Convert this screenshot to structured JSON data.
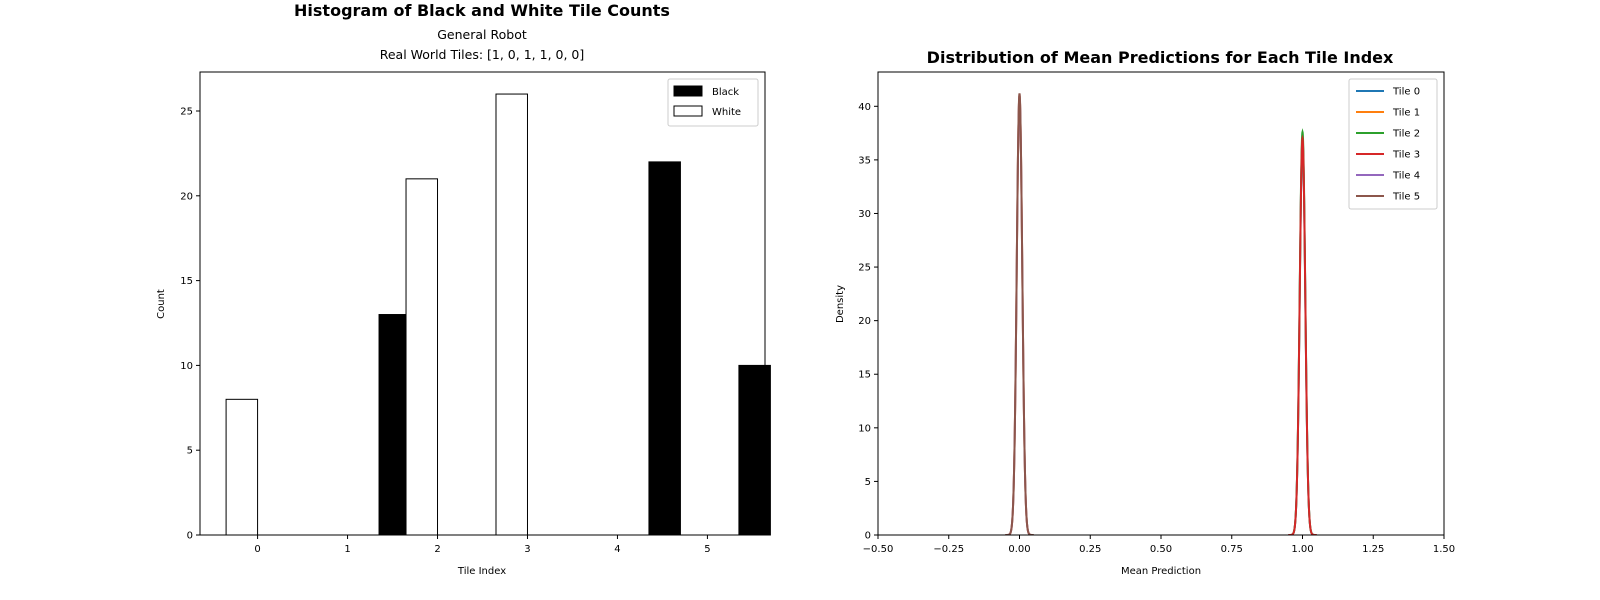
{
  "chart_data": [
    {
      "type": "bar",
      "title": "Histogram of Black and White Tile Counts",
      "subtitle_line1": "General Robot",
      "subtitle_line2": "Real World Tiles: [1, 0, 1, 1, 0, 0]",
      "xlabel": "Tile Index",
      "ylabel": "Count",
      "categories": [
        "0",
        "1",
        "2",
        "3",
        "4",
        "5"
      ],
      "x_ticks": [
        "0",
        "1",
        "2",
        "3",
        "4",
        "5"
      ],
      "y_ticks": [
        "0",
        "5",
        "10",
        "15",
        "20",
        "25"
      ],
      "xlim": [
        -0.64,
        5.64
      ],
      "ylim": [
        0,
        27.3
      ],
      "series": [
        {
          "name": "Black",
          "color": "#000000",
          "values": [
            0,
            13,
            0,
            0,
            22,
            10
          ]
        },
        {
          "name": "White",
          "color": "#ffffff",
          "values": [
            8,
            0,
            21,
            26,
            0,
            0
          ]
        }
      ],
      "legend": {
        "position": "top-right",
        "items": [
          "Black",
          "White"
        ]
      },
      "grid": false
    },
    {
      "type": "line",
      "title": "Distribution of Mean Predictions for Each Tile Index",
      "xlabel": "Mean Prediction",
      "ylabel": "Density",
      "x_ticks": [
        "−0.50",
        "−0.25",
        "0.00",
        "0.25",
        "0.50",
        "0.75",
        "1.00",
        "1.25",
        "1.50"
      ],
      "y_ticks": [
        "0",
        "5",
        "10",
        "15",
        "20",
        "25",
        "30",
        "35",
        "40"
      ],
      "xlim": [
        -0.5,
        1.5
      ],
      "ylim": [
        0,
        43.2
      ],
      "series": [
        {
          "name": "Tile 0",
          "color": "#1f77b4",
          "center": 1.0,
          "peak": 36.8
        },
        {
          "name": "Tile 1",
          "color": "#ff7f0e",
          "center": 0.0,
          "peak": 41.0
        },
        {
          "name": "Tile 2",
          "color": "#2ca02c",
          "center": 1.0,
          "peak": 37.6
        },
        {
          "name": "Tile 3",
          "color": "#d62728",
          "center": 1.0,
          "peak": 37.0
        },
        {
          "name": "Tile 4",
          "color": "#9467bd",
          "center": 0.0,
          "peak": 41.0
        },
        {
          "name": "Tile 5",
          "color": "#8c564b",
          "center": 0.0,
          "peak": 41.2
        }
      ],
      "legend": {
        "position": "top-right",
        "items": [
          "Tile 0",
          "Tile 1",
          "Tile 2",
          "Tile 3",
          "Tile 4",
          "Tile 5"
        ]
      },
      "grid": false
    }
  ]
}
